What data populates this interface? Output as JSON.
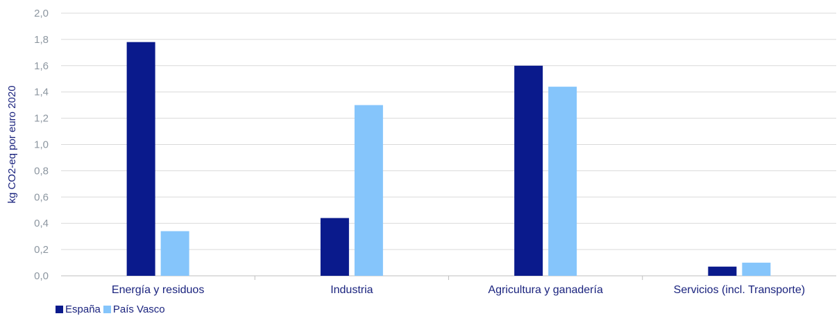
{
  "chart_data": {
    "type": "bar",
    "ylabel": "kg CO2-eq por euro 2020",
    "xlabel": "",
    "ylim": [
      0,
      2.0
    ],
    "yticks": [
      "0,0",
      "0,2",
      "0,4",
      "0,6",
      "0,8",
      "1,0",
      "1,2",
      "1,4",
      "1,6",
      "1,8",
      "2,0"
    ],
    "categories": [
      "Energía y residuos",
      "Industria",
      "Agricultura y ganadería",
      "Servicios (incl. Transporte)"
    ],
    "series": [
      {
        "name": "España",
        "color": "#0a1a8c",
        "values": [
          1.78,
          0.44,
          1.6,
          0.07
        ]
      },
      {
        "name": "País Vasco",
        "color": "#85c5fb",
        "values": [
          0.34,
          1.3,
          1.44,
          0.1
        ]
      }
    ],
    "grid": true,
    "legend_position": "bottom-left"
  }
}
